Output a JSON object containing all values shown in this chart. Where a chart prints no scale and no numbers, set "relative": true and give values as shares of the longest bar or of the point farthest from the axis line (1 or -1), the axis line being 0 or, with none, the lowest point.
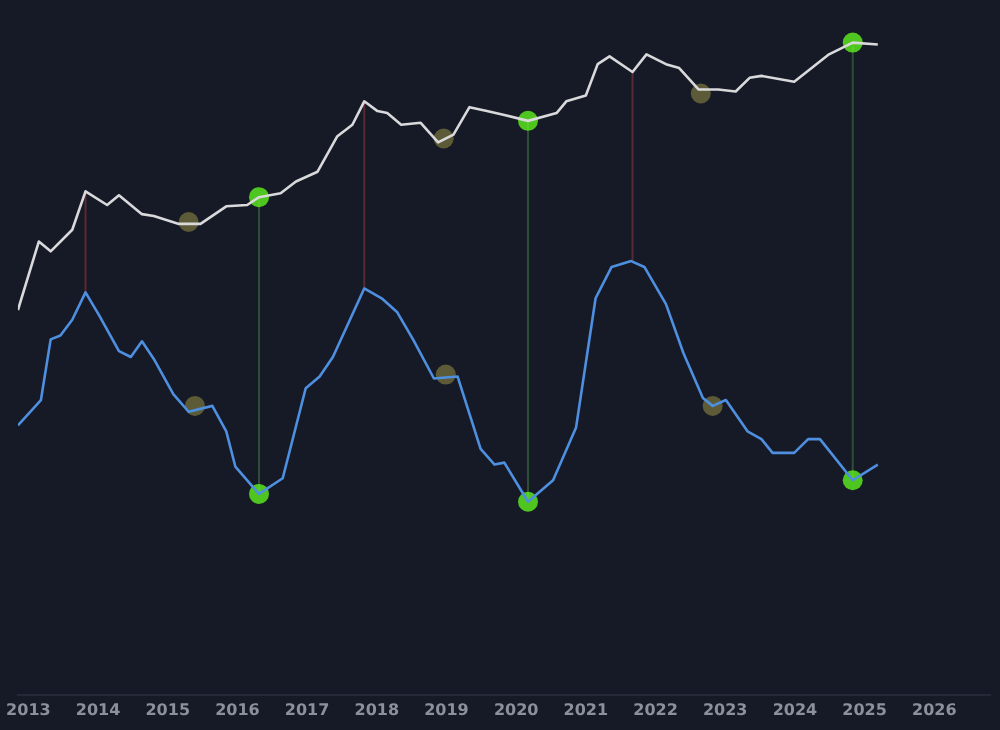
{
  "chart_data": {
    "type": "line",
    "relative": true,
    "xlim": [
      2012.85,
      2026.8
    ],
    "xticks": [
      2013,
      2014,
      2015,
      2016,
      2017,
      2018,
      2019,
      2020,
      2021,
      2022,
      2023,
      2024,
      2025,
      2026
    ],
    "series": [
      {
        "type": "line",
        "color": "#d9d9dc",
        "marker": "none",
        "x": [
          2012.85,
          2013.15,
          2013.32,
          2013.63,
          2013.82,
          2014.13,
          2014.3,
          2014.63,
          2014.8,
          2015.16,
          2015.47,
          2015.84,
          2016.14,
          2016.31,
          2016.62,
          2016.84,
          2017.15,
          2017.43,
          2017.65,
          2017.82,
          2018.01,
          2018.15,
          2018.35,
          2018.63,
          2018.88,
          2019.1,
          2019.33,
          2019.58,
          2019.83,
          2020.17,
          2020.58,
          2020.72,
          2021.0,
          2021.17,
          2021.34,
          2021.67,
          2021.87,
          2022.15,
          2022.34,
          2022.62,
          2022.9,
          2023.15,
          2023.35,
          2023.52,
          2023.99,
          2024.49,
          2024.83,
          2025.19
        ],
        "values": [
          0.59,
          0.695,
          0.68,
          0.713,
          0.772,
          0.751,
          0.766,
          0.737,
          0.734,
          0.722,
          0.722,
          0.749,
          0.751,
          0.763,
          0.769,
          0.787,
          0.802,
          0.856,
          0.874,
          0.91,
          0.895,
          0.892,
          0.874,
          0.877,
          0.847,
          0.859,
          0.901,
          0.895,
          0.889,
          0.88,
          0.892,
          0.91,
          0.919,
          0.967,
          0.979,
          0.955,
          0.982,
          0.967,
          0.961,
          0.928,
          0.928,
          0.925,
          0.946,
          0.949,
          0.94,
          0.982,
          1.0,
          0.997
        ]
      },
      {
        "type": "line",
        "color": "#4f8fe0",
        "marker": "none",
        "x": [
          2012.85,
          2013.18,
          2013.32,
          2013.46,
          2013.63,
          2013.82,
          2014.02,
          2014.3,
          2014.47,
          2014.63,
          2014.8,
          2015.08,
          2015.3,
          2015.64,
          2015.84,
          2015.97,
          2016.31,
          2016.65,
          2016.98,
          2017.18,
          2017.37,
          2017.82,
          2018.07,
          2018.29,
          2018.52,
          2018.82,
          2019.16,
          2019.49,
          2019.69,
          2019.83,
          2020.17,
          2020.53,
          2020.86,
          2021.14,
          2021.37,
          2021.65,
          2021.84,
          2022.15,
          2022.4,
          2022.68,
          2022.82,
          2023.01,
          2023.32,
          2023.52,
          2023.68,
          2023.99,
          2024.19,
          2024.36,
          2024.83,
          2025.19
        ],
        "values": [
          0.413,
          0.452,
          0.545,
          0.551,
          0.575,
          0.617,
          0.581,
          0.527,
          0.518,
          0.542,
          0.515,
          0.461,
          0.434,
          0.443,
          0.404,
          0.35,
          0.308,
          0.332,
          0.47,
          0.488,
          0.518,
          0.623,
          0.608,
          0.587,
          0.545,
          0.485,
          0.488,
          0.377,
          0.353,
          0.356,
          0.296,
          0.329,
          0.41,
          0.608,
          0.656,
          0.665,
          0.656,
          0.599,
          0.524,
          0.455,
          0.443,
          0.452,
          0.404,
          0.392,
          0.371,
          0.371,
          0.392,
          0.392,
          0.329,
          0.353
        ]
      },
      {
        "type": "scatter",
        "color": "#5ef01e",
        "marker": "circle",
        "x": [
          2016.31,
          2020.17,
          2024.83,
          2016.31,
          2020.17,
          2024.83
        ],
        "values": [
          0.763,
          0.88,
          1.0,
          0.308,
          0.296,
          0.329
        ]
      },
      {
        "type": "scatter",
        "color": "#6e6a3c",
        "marker": "circle",
        "x": [
          2015.3,
          2018.96,
          2022.65,
          2015.39,
          2018.99,
          2022.82
        ],
        "values": [
          0.725,
          0.853,
          0.922,
          0.443,
          0.491,
          0.443
        ]
      }
    ],
    "ref_lines": [
      {
        "axis": "x",
        "value": 2013.82,
        "color": "#5a2a32"
      },
      {
        "axis": "x",
        "value": 2017.82,
        "color": "#5a2a32"
      },
      {
        "axis": "x",
        "value": 2021.67,
        "color": "#5a2a32"
      },
      {
        "axis": "x",
        "value": 2016.31,
        "color": "#2c5036"
      },
      {
        "axis": "x",
        "value": 2020.17,
        "color": "#2c5036"
      },
      {
        "axis": "x",
        "value": 2024.83,
        "color": "#2c5036"
      }
    ]
  }
}
